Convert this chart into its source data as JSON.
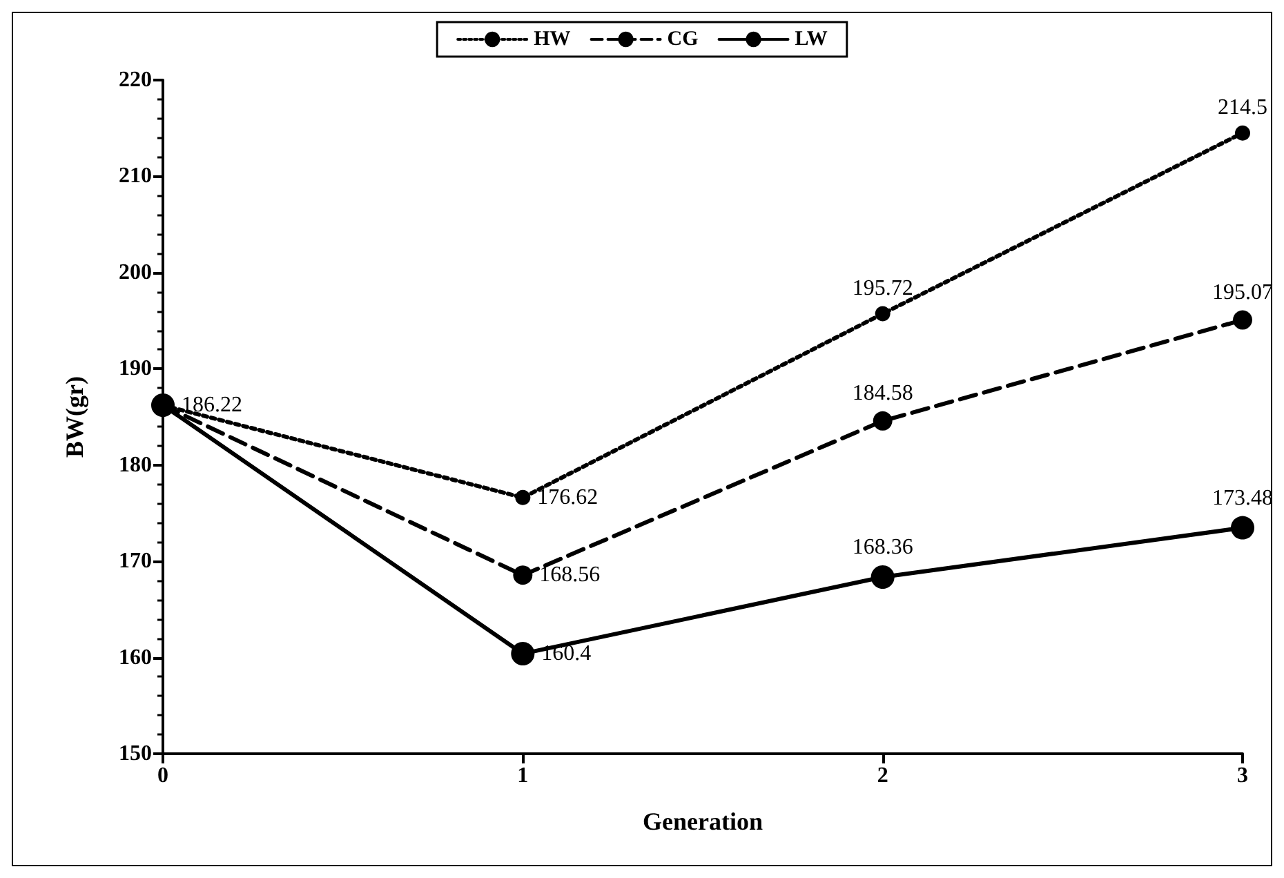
{
  "chart_data": {
    "type": "line",
    "xlabel": "Generation",
    "ylabel": "BW(gr)",
    "x": [
      0,
      1,
      2,
      3
    ],
    "xlim": [
      0,
      3
    ],
    "xticks": [
      0,
      1,
      2,
      3
    ],
    "ylim": [
      150,
      220
    ],
    "yticks": [
      150,
      160,
      170,
      180,
      190,
      200,
      210,
      220
    ],
    "grid": false,
    "legend": "top",
    "marker": "circle",
    "series": [
      {
        "name": "HW",
        "color": "#000000",
        "line_style": "dotted",
        "values": [
          186.2,
          176.62,
          195.72,
          214.5
        ],
        "value_labels": [
          null,
          "176.62",
          "195.72",
          "214.5"
        ]
      },
      {
        "name": "CG",
        "color": "#000000",
        "line_style": "dashed",
        "values": [
          186.2,
          168.56,
          184.58,
          195.07
        ],
        "value_labels": [
          null,
          "168.56",
          "184.58",
          "195.07"
        ]
      },
      {
        "name": "LW",
        "color": "#000000",
        "line_style": "solid",
        "values": [
          186.22,
          160.4,
          168.36,
          173.48
        ],
        "value_labels": [
          "186.22",
          "160.4",
          "168.36",
          "173.48"
        ]
      }
    ]
  }
}
